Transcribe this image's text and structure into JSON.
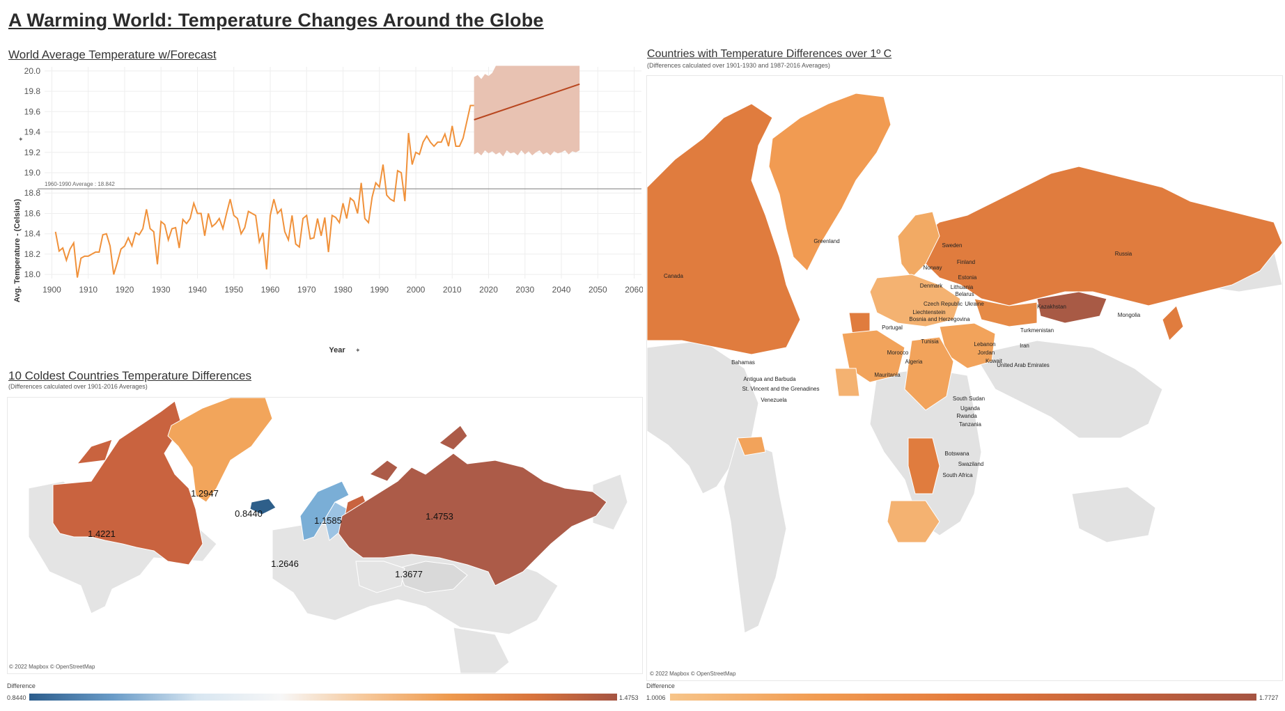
{
  "dashboard_title": "A Warming World: Temperature Changes Around the Globe",
  "line_chart": {
    "title": "World Average Temperature w/Forecast",
    "ylabel": "Avg. Temperature - (Celsius)",
    "xlabel": "Year",
    "reference_label": "1960-1990 Average : 18.842",
    "axis_marker_icon": "pin-icon",
    "colors": {
      "actual": "#f0913a",
      "forecast": "#b8461f",
      "band": "#e8c2b2",
      "reference": "#7a7a7a",
      "grid": "#eeeeee"
    }
  },
  "coldest_map": {
    "title": "10 Coldest Countries  Temperature Differences",
    "subtitle": "(Differences calculated over 1901-2016 Averages)",
    "credit": "© 2022 Mapbox © OpenStreetMap",
    "value_labels": [
      "1.2947",
      "0.8440",
      "1.1585",
      "1.4753",
      "1.4221",
      "1.2646",
      "1.3677"
    ],
    "legend": {
      "title": "Difference",
      "min": "0.8440",
      "max": "1.4753"
    }
  },
  "over_map": {
    "title": "Countries with Temperature Differences over 1º C",
    "subtitle": "(Differences calculated over 1901-1930 and 1987-2016 Averages)",
    "credit": "© 2022 Mapbox © OpenStreetMap",
    "country_labels": [
      "Greenland",
      "Canada",
      "Russia",
      "Mongolia",
      "Kazakhstan",
      "Sweden",
      "Finland",
      "Norway",
      "Estonia",
      "Denmark",
      "Lithuania",
      "Belarus",
      "Czech Republic",
      "Ukraine",
      "Liechtenstein",
      "Bosnia and Herzegovina",
      "Portugal",
      "Turkmenistan",
      "Tunisia",
      "Lebanon",
      "Jordan",
      "Iran",
      "Morocco",
      "Algeria",
      "Kuwait",
      "United Arab Emirates",
      "Mauritania",
      "Bahamas",
      "Antigua and Barbuda",
      "St. Vincent and the Grenadines",
      "Venezuela",
      "South Sudan",
      "Uganda",
      "Rwanda",
      "Tanzania",
      "Botswana",
      "Swaziland",
      "South Africa"
    ],
    "legend": {
      "title": "Difference",
      "min": "1.0006",
      "max": "1.7727"
    }
  },
  "chart_data": {
    "type": "line",
    "title": "World Average Temperature w/Forecast",
    "xlabel": "Year",
    "ylabel": "Avg. Temperature - (Celsius)",
    "xlim": [
      1898,
      2062
    ],
    "ylim": [
      17.96,
      20.04
    ],
    "xticks": [
      1900,
      1910,
      1920,
      1930,
      1940,
      1950,
      1960,
      1970,
      1980,
      1990,
      2000,
      2010,
      2020,
      2030,
      2040,
      2050,
      2060
    ],
    "yticks": [
      18.0,
      18.2,
      18.4,
      18.6,
      18.8,
      19.0,
      19.2,
      19.4,
      19.6,
      19.8,
      20.0
    ],
    "reference_line": {
      "label": "1960-1990 Average",
      "value": 18.842
    },
    "series": [
      {
        "kind": "actual",
        "x": [
          1901,
          1902,
          1903,
          1904,
          1905,
          1906,
          1907,
          1908,
          1909,
          1910,
          1911,
          1912,
          1913,
          1914,
          1915,
          1916,
          1917,
          1918,
          1919,
          1920,
          1921,
          1922,
          1923,
          1924,
          1925,
          1926,
          1927,
          1928,
          1929,
          1930,
          1931,
          1932,
          1933,
          1934,
          1935,
          1936,
          1937,
          1938,
          1939,
          1940,
          1941,
          1942,
          1943,
          1944,
          1945,
          1946,
          1947,
          1948,
          1949,
          1950,
          1951,
          1952,
          1953,
          1954,
          1955,
          1956,
          1957,
          1958,
          1959,
          1960,
          1961,
          1962,
          1963,
          1964,
          1965,
          1966,
          1967,
          1968,
          1969,
          1970,
          1971,
          1972,
          1973,
          1974,
          1975,
          1976,
          1977,
          1978,
          1979,
          1980,
          1981,
          1982,
          1983,
          1984,
          1985,
          1986,
          1987,
          1988,
          1989,
          1990,
          1991,
          1992,
          1993,
          1994,
          1995,
          1996,
          1997,
          1998,
          1999,
          2000,
          2001,
          2002,
          2003,
          2004,
          2005,
          2006,
          2007,
          2008,
          2009,
          2010,
          2011,
          2012,
          2013,
          2014,
          2015,
          2016
        ],
        "values": [
          18.42,
          18.23,
          18.26,
          18.14,
          18.25,
          18.31,
          17.97,
          18.16,
          18.18,
          18.18,
          18.2,
          18.22,
          18.22,
          18.39,
          18.4,
          18.28,
          18.0,
          18.12,
          18.25,
          18.28,
          18.36,
          18.28,
          18.41,
          18.39,
          18.45,
          18.64,
          18.45,
          18.42,
          18.1,
          18.52,
          18.49,
          18.34,
          18.45,
          18.46,
          18.26,
          18.54,
          18.5,
          18.55,
          18.7,
          18.6,
          18.6,
          18.38,
          18.6,
          18.47,
          18.5,
          18.55,
          18.45,
          18.6,
          18.74,
          18.58,
          18.55,
          18.4,
          18.46,
          18.62,
          18.6,
          18.58,
          18.32,
          18.41,
          18.05,
          18.58,
          18.74,
          18.6,
          18.64,
          18.42,
          18.34,
          18.58,
          18.3,
          18.27,
          18.55,
          18.58,
          18.35,
          18.36,
          18.55,
          18.38,
          18.56,
          18.22,
          18.58,
          18.56,
          18.51,
          18.7,
          18.55,
          18.75,
          18.72,
          18.6,
          18.9,
          18.55,
          18.51,
          18.76,
          18.9,
          18.86,
          19.08,
          18.78,
          18.74,
          18.72,
          19.02,
          19.0,
          18.72,
          19.39,
          19.08,
          19.2,
          19.18,
          19.3,
          19.36,
          19.3,
          19.26,
          19.3,
          19.3,
          19.38,
          19.26,
          19.46,
          19.26,
          19.26,
          19.34,
          19.5,
          19.66,
          19.66
        ]
      },
      {
        "kind": "forecast",
        "x": [
          2016,
          2045
        ],
        "values": [
          19.52,
          19.87
        ]
      }
    ],
    "forecast_band": {
      "x": [
        2016,
        2017,
        2018,
        2019,
        2020,
        2021,
        2022,
        2023,
        2024,
        2025,
        2026,
        2027,
        2028,
        2029,
        2030,
        2031,
        2032,
        2033,
        2034,
        2035,
        2036,
        2037,
        2038,
        2039,
        2040,
        2041,
        2042,
        2043,
        2044,
        2045
      ],
      "upper": [
        19.94,
        19.96,
        19.92,
        19.97,
        19.95,
        19.98,
        20.05,
        20.05,
        20.05,
        20.05,
        20.05,
        20.05,
        20.05,
        20.05,
        20.05,
        20.05,
        20.05,
        20.05,
        20.05,
        20.05,
        20.05,
        20.05,
        20.05,
        20.05,
        20.05,
        20.05,
        20.05,
        20.05,
        20.05,
        20.05
      ],
      "lower": [
        19.18,
        19.2,
        19.17,
        19.22,
        19.19,
        19.21,
        19.18,
        19.2,
        19.16,
        19.22,
        19.19,
        19.2,
        19.17,
        19.22,
        19.18,
        19.21,
        19.17,
        19.2,
        19.22,
        19.18,
        19.2,
        19.17,
        19.21,
        19.19,
        19.2,
        19.22,
        19.18,
        19.21,
        19.2,
        19.22
      ]
    }
  }
}
